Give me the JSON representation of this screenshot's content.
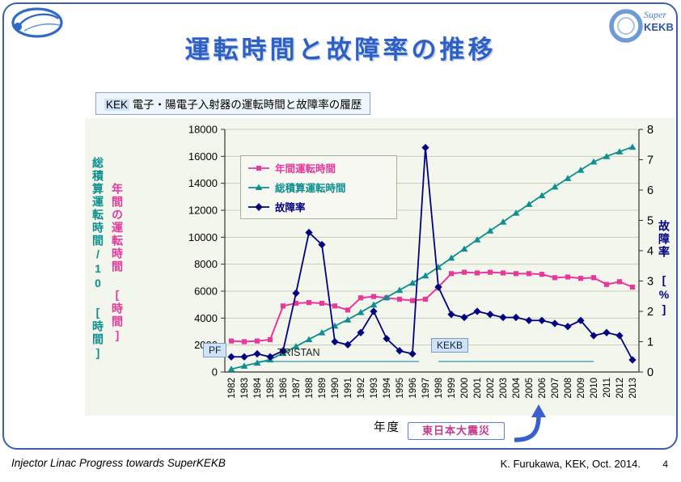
{
  "slide": {
    "title": "運転時間と故障率の推移",
    "subtitle_prefix": "KEK",
    "subtitle_rest": " 電子・陽電子入射器の運転時間と故障率の履歴",
    "footer_left": "Injector Linac Progress towards SuperKEKB",
    "footer_right": "K. Furukawa, KEK, Oct. 2014.",
    "page_number": "4",
    "border_color": "#3d5fb0",
    "title_color": "#2e5fc4"
  },
  "logos": {
    "superkekb_line1": "Super",
    "superkekb_line2": "KEKB"
  },
  "callout": {
    "earthquake": "東日本大震災"
  },
  "chart_data": {
    "type": "line",
    "title": "KEK 電子・陽電子入射器の運転時間と故障率の履歴",
    "x_label": "年度",
    "grid": true,
    "legend_position": "upper-left-inside",
    "x": [
      "1982",
      "1983",
      "1984",
      "1985",
      "1986",
      "1987",
      "1988",
      "1989",
      "1990",
      "1991",
      "1992",
      "1993",
      "1994",
      "1995",
      "1996",
      "1997",
      "1998",
      "1999",
      "2000",
      "2001",
      "2002",
      "2003",
      "2004",
      "2005",
      "2006",
      "2007",
      "2008",
      "2009",
      "2010",
      "2011",
      "2012",
      "2013"
    ],
    "left_axis": {
      "min": 0,
      "max": 18000,
      "step": 2000,
      "titles": [
        {
          "text": "総積算運転時間/10 [時間]",
          "color": "#0e8f8f"
        },
        {
          "text": "年間の運転時間 [時間]",
          "color": "#e8389a"
        }
      ]
    },
    "right_axis": {
      "min": 0,
      "max": 8,
      "step": 1,
      "title": {
        "text": "故障率 [%]",
        "color": "#000080"
      }
    },
    "series": [
      {
        "name": "年間運転時間",
        "axis": "left",
        "color": "#e8389a",
        "marker": "square",
        "values": [
          2300,
          2250,
          2300,
          2400,
          4900,
          5100,
          5150,
          5100,
          4900,
          4600,
          5500,
          5600,
          5500,
          5400,
          5300,
          5400,
          6300,
          7300,
          7400,
          7350,
          7400,
          7350,
          7300,
          7300,
          7250,
          7000,
          7050,
          6950,
          7000,
          6500,
          6700,
          6300
        ]
      },
      {
        "name": "総積算運転時間",
        "axis": "left",
        "color": "#0e8f8f",
        "marker": "triangle",
        "values": [
          220,
          450,
          680,
          920,
          1400,
          1900,
          2420,
          2930,
          3420,
          3880,
          4430,
          4990,
          5540,
          6080,
          6610,
          7150,
          7780,
          8460,
          9140,
          9820,
          10480,
          11140,
          11800,
          12450,
          13100,
          13740,
          14370,
          14990,
          15600,
          16000,
          16350,
          16700
        ]
      },
      {
        "name": "故障率",
        "axis": "right",
        "color": "#000080",
        "marker": "diamond",
        "values": [
          0.5,
          0.5,
          0.6,
          0.5,
          0.7,
          2.6,
          4.6,
          4.2,
          1.0,
          0.9,
          1.3,
          2.0,
          1.1,
          0.7,
          0.6,
          7.4,
          2.8,
          1.9,
          1.8,
          2.0,
          1.9,
          1.8,
          1.8,
          1.7,
          1.7,
          1.6,
          1.5,
          1.7,
          1.2,
          1.3,
          1.2,
          0.4
        ]
      }
    ],
    "era_annotations": [
      {
        "text": "PF",
        "year": 1983,
        "boxed": true
      },
      {
        "text": "TRISTAN",
        "year": 1990,
        "boxed": false,
        "year_from": 1984,
        "year_to": 1996.5
      },
      {
        "text": "KEKB",
        "year": 2003,
        "boxed": true,
        "year_from": 1998,
        "year_to": 2010
      }
    ]
  }
}
